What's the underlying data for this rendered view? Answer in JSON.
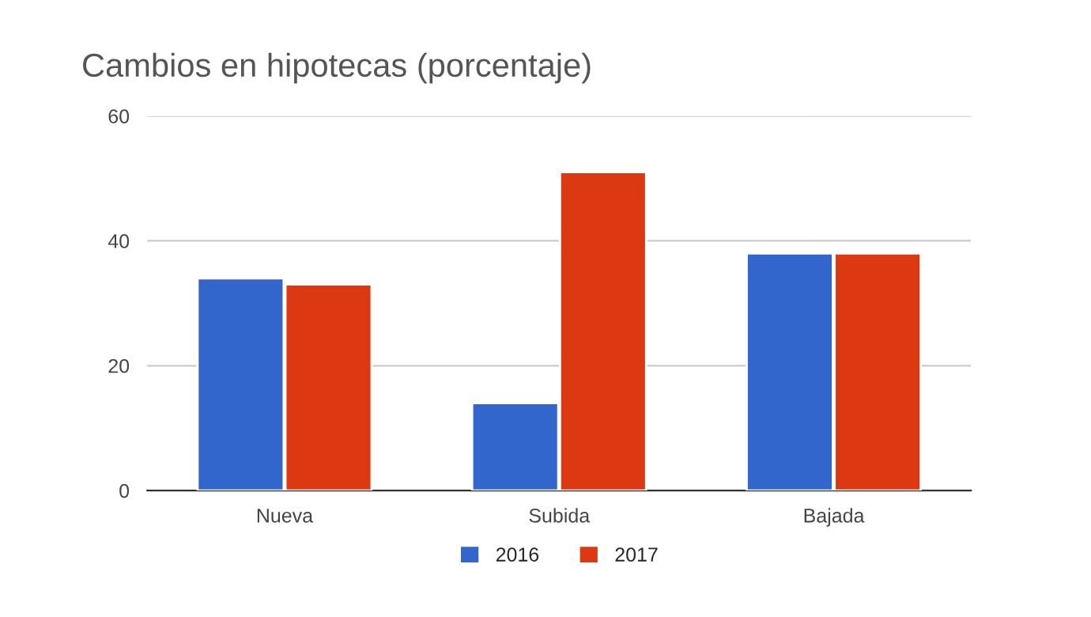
{
  "chart_data": {
    "type": "bar",
    "title": "Cambios en hipotecas (porcentaje)",
    "categories": [
      "Nueva",
      "Subida",
      "Bajada"
    ],
    "series": [
      {
        "name": "2016",
        "color": "#3366cc",
        "values": [
          34,
          14,
          38
        ]
      },
      {
        "name": "2017",
        "color": "#dc3912",
        "values": [
          33,
          51,
          38
        ]
      }
    ],
    "ylim": [
      0,
      60
    ],
    "yticks": [
      0,
      20,
      40,
      60
    ],
    "grid": "y",
    "legend": "bottom"
  }
}
